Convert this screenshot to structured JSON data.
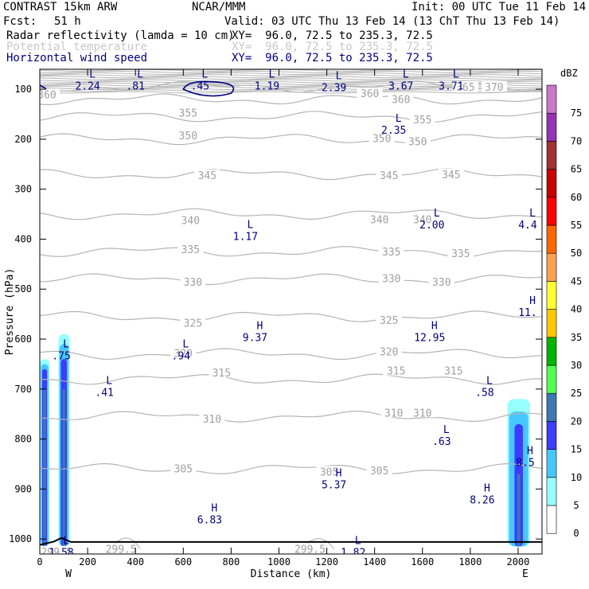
{
  "header": {
    "model": "CONTRAST 15km ARW",
    "center": "NCAR/MMM",
    "init": "Init: 00 UTC Tue 11 Feb 14",
    "fcst_label": "Fcst:",
    "fcst_value": "51 h",
    "valid": "Valid: 03 UTC Thu 13 Feb 14 (13 ChT Thu 13 Feb 14)",
    "fields": [
      {
        "name": "Radar reflectivity (lamda = 10 cm)",
        "xy": "XY=  96.0, 72.5 to 235.3, 72.5",
        "color": "#000000"
      },
      {
        "name": "Potential temperature",
        "xy": "XY=  96.0, 72.5 to 235.3, 72.5",
        "color": "#c8c8c8"
      },
      {
        "name": "Horizontal wind speed",
        "xy": "XY=  96.0, 72.5 to 235.3, 72.5",
        "color": "#000080"
      }
    ]
  },
  "chart_data": {
    "type": "cross-section",
    "xlabel": "Distance (km)",
    "ylabel": "Pressure (hPa)",
    "xlim": [
      0,
      2100
    ],
    "ylim": [
      1030,
      60
    ],
    "x_ticks": [
      0,
      200,
      400,
      600,
      800,
      1000,
      1200,
      1400,
      1600,
      1800,
      2000
    ],
    "y_ticks": [
      100,
      200,
      300,
      400,
      500,
      600,
      700,
      800,
      900,
      1000
    ],
    "end_labels": {
      "west": "W",
      "east": "E"
    },
    "theta_contours": [
      {
        "value": 365,
        "p": 95
      },
      {
        "value": 360,
        "p": 120
      },
      {
        "value": 355,
        "p": 155
      },
      {
        "value": 350,
        "p": 200
      },
      {
        "value": 345,
        "p": 270
      },
      {
        "value": 340,
        "p": 350
      },
      {
        "value": 335,
        "p": 425
      },
      {
        "value": 330,
        "p": 480
      },
      {
        "value": 325,
        "p": 555
      },
      {
        "value": 320,
        "p": 630
      },
      {
        "value": 315,
        "p": 680
      },
      {
        "value": 310,
        "p": 755
      },
      {
        "value": 305,
        "p": 860
      }
    ],
    "theta_labels": [
      {
        "text": "360",
        "x": 30,
        "p": 110
      },
      {
        "text": "355",
        "x": 620,
        "p": 147
      },
      {
        "text": "350",
        "x": 620,
        "p": 192
      },
      {
        "text": "345",
        "x": 700,
        "p": 272
      },
      {
        "text": "340",
        "x": 630,
        "p": 362
      },
      {
        "text": "335",
        "x": 630,
        "p": 420
      },
      {
        "text": "330",
        "x": 640,
        "p": 485
      },
      {
        "text": "325",
        "x": 640,
        "p": 567
      },
      {
        "text": "320",
        "x": 600,
        "p": 628
      },
      {
        "text": "315",
        "x": 760,
        "p": 667
      },
      {
        "text": "310",
        "x": 720,
        "p": 759
      },
      {
        "text": "305",
        "x": 600,
        "p": 859
      },
      {
        "text": "360",
        "x": 1380,
        "p": 108
      },
      {
        "text": "360",
        "x": 1510,
        "p": 120
      },
      {
        "text": "355",
        "x": 1600,
        "p": 160
      },
      {
        "text": "350",
        "x": 1430,
        "p": 198
      },
      {
        "text": "350",
        "x": 1580,
        "p": 204
      },
      {
        "text": "345",
        "x": 1460,
        "p": 272
      },
      {
        "text": "345",
        "x": 1720,
        "p": 270
      },
      {
        "text": "340",
        "x": 1420,
        "p": 360
      },
      {
        "text": "340",
        "x": 1600,
        "p": 360
      },
      {
        "text": "335",
        "x": 1470,
        "p": 425
      },
      {
        "text": "335",
        "x": 1760,
        "p": 428
      },
      {
        "text": "330",
        "x": 1470,
        "p": 478
      },
      {
        "text": "330",
        "x": 1680,
        "p": 485
      },
      {
        "text": "325",
        "x": 1460,
        "p": 562
      },
      {
        "text": "320",
        "x": 1460,
        "p": 625
      },
      {
        "text": "315",
        "x": 1490,
        "p": 663
      },
      {
        "text": "315",
        "x": 1730,
        "p": 663
      },
      {
        "text": "310",
        "x": 1480,
        "p": 747
      },
      {
        "text": "310",
        "x": 1600,
        "p": 747
      },
      {
        "text": "305",
        "x": 1210,
        "p": 865
      },
      {
        "text": "305",
        "x": 1420,
        "p": 863
      },
      {
        "text": "299.5",
        "x": 340,
        "p": 1020
      },
      {
        "text": "299.5",
        "x": 1130,
        "p": 1020
      },
      {
        "text": "299.5",
        "x": 70,
        "p": 1025
      },
      {
        "text": "365",
        "x": 1780,
        "p": 95
      },
      {
        "text": "370",
        "x": 1900,
        "p": 95
      }
    ],
    "wind_extrema": [
      {
        "type": "L",
        "value": "2.24",
        "x": 220,
        "p": 77
      },
      {
        "type": "L",
        "value": ".81",
        "x": 420,
        "p": 77
      },
      {
        "type": "L",
        "value": ".45",
        "x": 690,
        "p": 77
      },
      {
        "type": "L",
        "value": "1.19",
        "x": 970,
        "p": 77
      },
      {
        "type": "L",
        "value": "2.39",
        "x": 1250,
        "p": 80
      },
      {
        "type": "L",
        "value": "3.67",
        "x": 1530,
        "p": 77
      },
      {
        "type": "L",
        "value": "3.71",
        "x": 1740,
        "p": 77
      },
      {
        "type": "L",
        "value": "2.35",
        "x": 1500,
        "p": 165
      },
      {
        "type": "L",
        "value": "1.17",
        "x": 880,
        "p": 378
      },
      {
        "type": "L",
        "value": "2.00",
        "x": 1660,
        "p": 355
      },
      {
        "type": "L",
        "value": "4.4",
        "x": 2060,
        "p": 355
      },
      {
        "type": "H",
        "value": "11.",
        "x": 2060,
        "p": 530
      },
      {
        "type": "H",
        "value": "9.37",
        "x": 920,
        "p": 580
      },
      {
        "type": "H",
        "value": "12.95",
        "x": 1650,
        "p": 580
      },
      {
        "type": "L",
        "value": ".75",
        "x": 110,
        "p": 617
      },
      {
        "type": "L",
        "value": ".94",
        "x": 610,
        "p": 617
      },
      {
        "type": "L",
        "value": ".41",
        "x": 290,
        "p": 690
      },
      {
        "type": "L",
        "value": ".58",
        "x": 1880,
        "p": 690
      },
      {
        "type": "L",
        "value": ".63",
        "x": 1700,
        "p": 788
      },
      {
        "type": "H",
        "value": "8.5",
        "x": 2050,
        "p": 830
      },
      {
        "type": "H",
        "value": "5.37",
        "x": 1250,
        "p": 875
      },
      {
        "type": "H",
        "value": "8.26",
        "x": 1870,
        "p": 905
      },
      {
        "type": "H",
        "value": "6.83",
        "x": 730,
        "p": 945
      },
      {
        "type": "L",
        "value": "1.58",
        "x": 110,
        "p": 1010
      },
      {
        "type": "L",
        "value": "1.82",
        "x": 1330,
        "p": 1010
      }
    ],
    "reflectivity_scale": {
      "unit": "dBZ",
      "levels": [
        "0",
        "5",
        "10",
        "15",
        "20",
        "25",
        "30",
        "35",
        "40",
        "45",
        "50",
        "55",
        "60",
        "65",
        "70",
        "75"
      ],
      "colors": [
        "#ffffff",
        "#96ffff",
        "#46c8ff",
        "#3c3cff",
        "#3c78b4",
        "#50ff50",
        "#00b400",
        "#ffc800",
        "#ffff32",
        "#ffa050",
        "#ff6400",
        "#ff0000",
        "#c80000",
        "#a03232",
        "#9632b4",
        "#c878c8"
      ]
    }
  }
}
